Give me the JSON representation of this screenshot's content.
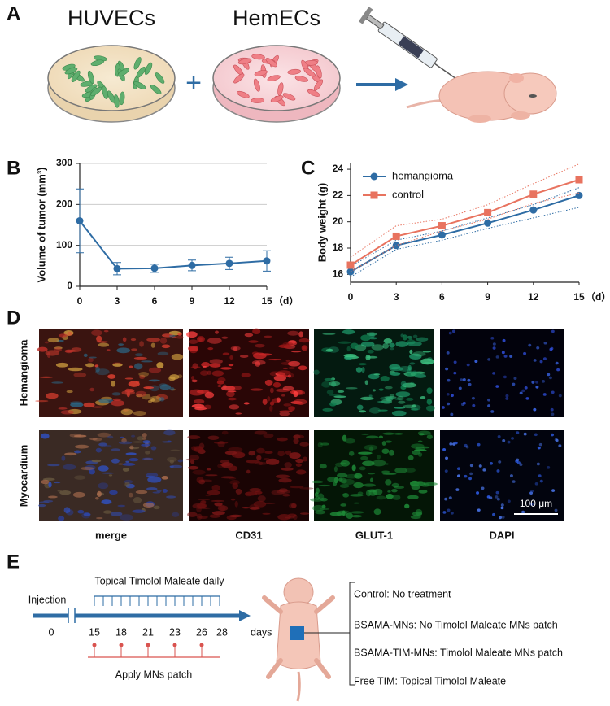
{
  "panel_labels": [
    "A",
    "B",
    "C",
    "D",
    "E"
  ],
  "panel_a": {
    "cells_left": "HUVECs",
    "cells_right": "HemECs",
    "plus": "+"
  },
  "chart_data": [
    {
      "type": "line",
      "ylabel": "Volume of tumor (mm³)",
      "x_unit": "（d）",
      "x": [
        0,
        3,
        6,
        9,
        12,
        15
      ],
      "values": [
        160,
        43,
        44,
        51,
        56,
        62
      ],
      "errors": [
        78,
        15,
        10,
        13,
        15,
        25
      ],
      "color": "#2e6ca4",
      "xlim": [
        0,
        15
      ],
      "xticks": [
        0,
        3,
        6,
        9,
        12,
        15
      ],
      "ylim": [
        0,
        300
      ],
      "yticks": [
        0,
        100,
        200,
        300
      ],
      "grid": true
    },
    {
      "type": "line",
      "ylabel": "Body weight (g)",
      "x_unit": "（d）",
      "x": [
        0,
        3,
        6,
        9,
        12,
        15
      ],
      "series": [
        {
          "name": "hemangioma",
          "color": "#2e6ca4",
          "marker": "circle",
          "values": [
            16.2,
            18.2,
            19.0,
            19.9,
            20.9,
            22.0
          ],
          "lower": [
            15.8,
            17.9,
            18.6,
            19.5,
            20.3,
            21.1
          ],
          "upper": [
            16.6,
            18.6,
            19.3,
            20.3,
            21.3,
            22.6
          ]
        },
        {
          "name": "control",
          "color": "#e8735f",
          "marker": "square",
          "values": [
            16.7,
            18.9,
            19.7,
            20.7,
            22.1,
            23.2
          ],
          "lower": [
            16.2,
            18.2,
            19.3,
            20.2,
            21.4,
            22.2
          ],
          "upper": [
            17.3,
            19.7,
            20.2,
            21.3,
            22.9,
            24.4
          ]
        }
      ],
      "xlim": [
        0,
        15
      ],
      "xticks": [
        0,
        3,
        6,
        9,
        12,
        15
      ],
      "ylim": [
        15.4,
        24.5
      ],
      "yticks": [
        16,
        18,
        20,
        22,
        24
      ],
      "grid": false,
      "legend": "upper left"
    }
  ],
  "panel_d": {
    "rows": [
      "Hemangioma",
      "Myocardium"
    ],
    "columns": [
      "merge",
      "CD31",
      "GLUT-1",
      "DAPI"
    ],
    "scale_bar": "100 μm"
  },
  "panel_e": {
    "injection": "Injection",
    "daily": "Topical Timolol Maleate daily",
    "patch": "Apply MNs patch",
    "timeline": [
      "0",
      "15",
      "18",
      "21",
      "23",
      "26",
      "28"
    ],
    "unit": "days",
    "groups": [
      "Control: No treatment",
      "BSAMA-MNs: No Timolol Maleate MNs patch",
      "BSAMA-TIM-MNs: Timolol Maleate MNs patch",
      "Free TIM: Topical Timolol Maleate"
    ]
  }
}
